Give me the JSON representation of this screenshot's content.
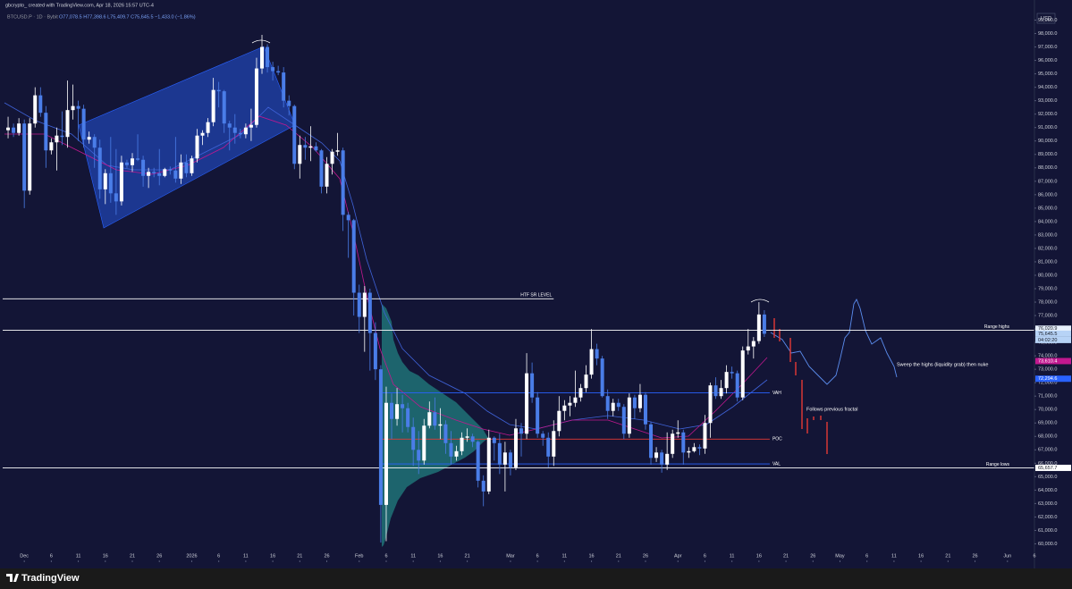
{
  "header": {
    "attribution": "gbcrypto_ created with TradingView.com, Apr 18, 2026 15:57 UTC-4",
    "symbol": "BTCUSD.P · 1D · Bybit",
    "ohlc": "O77,078.5 H77,398.6 L75,409.7 C75,645.5 −1,433.0 (−1.86%)"
  },
  "footer": {
    "logo": "TradingView"
  },
  "chart_data": {
    "type": "candlestick",
    "currency": "USD",
    "up_color": "#ffffff",
    "down_color": "#4a7de8",
    "xlim": [
      "2025-11-27",
      "2026-06-06"
    ],
    "ylim": [
      58700,
      99300
    ],
    "x": [
      "2025-11-28",
      "2025-11-29",
      "2025-11-30",
      "2025-12-01",
      "2025-12-02",
      "2025-12-03",
      "2025-12-04",
      "2025-12-05",
      "2025-12-06",
      "2025-12-07",
      "2025-12-08",
      "2025-12-09",
      "2025-12-10",
      "2025-12-11",
      "2025-12-12",
      "2025-12-13",
      "2025-12-14",
      "2025-12-15",
      "2025-12-16",
      "2025-12-17",
      "2025-12-18",
      "2025-12-19",
      "2025-12-20",
      "2025-12-21",
      "2025-12-22",
      "2025-12-23",
      "2025-12-24",
      "2025-12-25",
      "2025-12-26",
      "2025-12-27",
      "2025-12-28",
      "2025-12-29",
      "2025-12-30",
      "2025-12-31",
      "2026-01-01",
      "2026-01-02",
      "2026-01-03",
      "2026-01-04",
      "2026-01-05",
      "2026-01-06",
      "2026-01-07",
      "2026-01-08",
      "2026-01-09",
      "2026-01-10",
      "2026-01-11",
      "2026-01-12",
      "2026-01-13",
      "2026-01-14",
      "2026-01-15",
      "2026-01-16",
      "2026-01-17",
      "2026-01-18",
      "2026-01-19",
      "2026-01-20",
      "2026-01-21",
      "2026-01-22",
      "2026-01-23",
      "2026-01-24",
      "2026-01-25",
      "2026-01-26",
      "2026-01-27",
      "2026-01-28",
      "2026-01-29",
      "2026-01-30",
      "2026-01-31",
      "2026-02-01",
      "2026-02-02",
      "2026-02-03",
      "2026-02-04",
      "2026-02-05",
      "2026-02-06",
      "2026-02-07",
      "2026-02-08",
      "2026-02-09",
      "2026-02-10",
      "2026-02-11",
      "2026-02-12",
      "2026-02-13",
      "2026-02-14",
      "2026-02-15",
      "2026-02-16",
      "2026-02-17",
      "2026-02-18",
      "2026-02-19",
      "2026-02-20",
      "2026-02-21",
      "2026-02-22",
      "2026-02-23",
      "2026-02-24",
      "2026-02-25",
      "2026-02-26",
      "2026-02-27",
      "2026-02-28",
      "2026-03-01",
      "2026-03-02",
      "2026-03-03",
      "2026-03-04",
      "2026-03-05",
      "2026-03-06",
      "2026-03-07",
      "2026-03-08",
      "2026-03-09",
      "2026-03-10",
      "2026-03-11",
      "2026-03-12",
      "2026-03-13",
      "2026-03-14",
      "2026-03-15",
      "2026-03-16",
      "2026-03-17",
      "2026-03-18",
      "2026-03-19",
      "2026-03-20",
      "2026-03-21",
      "2026-03-22",
      "2026-03-23",
      "2026-03-24",
      "2026-03-25",
      "2026-03-26",
      "2026-03-27",
      "2026-03-28",
      "2026-03-29",
      "2026-03-30",
      "2026-03-31",
      "2026-04-01",
      "2026-04-02",
      "2026-04-03",
      "2026-04-04",
      "2026-04-05",
      "2026-04-06",
      "2026-04-07",
      "2026-04-08",
      "2026-04-09",
      "2026-04-10",
      "2026-04-11",
      "2026-04-12",
      "2026-04-13",
      "2026-04-14",
      "2026-04-15",
      "2026-04-16",
      "2026-04-17"
    ],
    "open": [
      90800,
      91000,
      90600,
      91300,
      86300,
      91300,
      93400,
      92100,
      89300,
      89900,
      90400,
      90300,
      92300,
      92600,
      92400,
      90100,
      90300,
      89500,
      86400,
      87600,
      86100,
      85500,
      88400,
      88200,
      88700,
      88600,
      87400,
      87700,
      87600,
      87400,
      87900,
      87800,
      87200,
      88400,
      87600,
      88700,
      90400,
      90600,
      91400,
      93800,
      93700,
      91300,
      91000,
      90600,
      90500,
      91000,
      91200,
      95400,
      97000,
      95500,
      95200,
      95100,
      93000,
      92600,
      88300,
      89700,
      89500,
      89600,
      89300,
      86600,
      88300,
      89200,
      89300,
      84500,
      84100,
      78700,
      76900,
      78700,
      75700,
      73000,
      62900,
      70500,
      69300,
      70400,
      70100,
      68700,
      67000,
      66200,
      68800,
      69800,
      68800,
      68900,
      67500,
      66500,
      66900,
      67900,
      68000,
      67600,
      64700,
      63900,
      67900,
      67500,
      65900,
      66800,
      65700,
      68600,
      68200,
      72700,
      70900,
      68200,
      67900,
      66500,
      68400,
      69900,
      70300,
      70500,
      70900,
      71600,
      72600,
      74500,
      73800,
      71000,
      69900,
      70500,
      70200,
      68200,
      70900,
      70100,
      71100,
      68900,
      66400,
      66800,
      65900,
      66700,
      68200,
      68300,
      66800,
      66900,
      67200,
      67100,
      69000,
      71800,
      71000,
      71600,
      72800,
      72700,
      70900,
      74400,
      74700,
      75100,
      77078.5
    ],
    "high": [
      91800,
      91300,
      91700,
      91600,
      91700,
      94000,
      94000,
      92600,
      90200,
      91000,
      92200,
      94500,
      94200,
      93000,
      92700,
      90700,
      90500,
      90100,
      87900,
      90300,
      89400,
      88900,
      88600,
      89100,
      90500,
      88900,
      88000,
      88000,
      89400,
      88000,
      88100,
      90300,
      89000,
      89000,
      88900,
      90900,
      90800,
      91700,
      94700,
      94400,
      93800,
      91500,
      92000,
      90900,
      91300,
      92400,
      96200,
      97900,
      97200,
      95900,
      95600,
      95500,
      93400,
      92700,
      90400,
      90300,
      91100,
      89900,
      89400,
      88800,
      89400,
      90600,
      89500,
      84700,
      84200,
      79300,
      79200,
      79000,
      76500,
      73300,
      71700,
      71200,
      71600,
      71100,
      70500,
      69400,
      68400,
      69300,
      70600,
      70900,
      70100,
      69200,
      68400,
      67300,
      68300,
      68600,
      68200,
      67700,
      65100,
      68500,
      68000,
      68200,
      67600,
      67000,
      69300,
      69000,
      74200,
      73500,
      71300,
      68400,
      68300,
      69200,
      71000,
      70700,
      71000,
      72900,
      71900,
      73300,
      76000,
      74900,
      74000,
      71500,
      70800,
      70800,
      70400,
      71200,
      71100,
      71900,
      71300,
      69100,
      67200,
      67000,
      68300,
      68500,
      69200,
      68500,
      67200,
      67500,
      67400,
      69600,
      72000,
      72400,
      72200,
      73300,
      73200,
      72900,
      74700,
      76000,
      75400,
      78000,
      77398.6
    ],
    "low": [
      90200,
      90300,
      90400,
      85000,
      86000,
      91000,
      91800,
      88000,
      89000,
      87800,
      89700,
      89500,
      91600,
      90000,
      89500,
      89800,
      88000,
      85700,
      85300,
      85400,
      84500,
      85200,
      88000,
      87700,
      88500,
      86600,
      86500,
      87300,
      86700,
      87300,
      87500,
      86900,
      86800,
      87300,
      87400,
      88400,
      89700,
      90300,
      91100,
      92500,
      90600,
      89300,
      89800,
      90200,
      90200,
      90000,
      91000,
      95000,
      95100,
      94500,
      94900,
      92500,
      91900,
      87900,
      87200,
      88600,
      88500,
      89200,
      86100,
      86100,
      87500,
      88900,
      83300,
      81300,
      77000,
      75700,
      74300,
      72900,
      72200,
      60100,
      60200,
      67800,
      68800,
      68300,
      68300,
      65800,
      65200,
      65900,
      68600,
      68500,
      67800,
      66700,
      65900,
      66200,
      66600,
      67600,
      67200,
      64200,
      62800,
      63700,
      66200,
      65200,
      63900,
      65100,
      65500,
      66500,
      67800,
      70500,
      67900,
      67300,
      65700,
      65800,
      68000,
      69200,
      69500,
      70200,
      70600,
      71300,
      72300,
      73300,
      70900,
      69300,
      69500,
      69900,
      67800,
      67900,
      69300,
      69800,
      68500,
      65900,
      66100,
      65300,
      65500,
      66400,
      67900,
      65900,
      66400,
      66800,
      66600,
      66700,
      67900,
      70800,
      70800,
      71200,
      72300,
      70600,
      70700,
      74100,
      73800,
      74900,
      75409.7
    ],
    "close": [
      91000,
      90600,
      91300,
      86300,
      91300,
      93400,
      92100,
      89300,
      89900,
      90400,
      90300,
      92300,
      92600,
      92400,
      90100,
      90300,
      89500,
      86400,
      87600,
      86100,
      85500,
      88400,
      88200,
      88700,
      88600,
      87400,
      87700,
      87600,
      87400,
      87900,
      87800,
      87200,
      88400,
      87600,
      88700,
      90400,
      90600,
      91400,
      93800,
      93700,
      91300,
      91000,
      90600,
      90500,
      91000,
      91200,
      95400,
      97000,
      95500,
      95200,
      95100,
      93000,
      92600,
      88300,
      89700,
      89500,
      89600,
      89300,
      86600,
      88300,
      89200,
      89300,
      84500,
      84100,
      78700,
      76900,
      78700,
      75700,
      73000,
      62900,
      70500,
      69300,
      70400,
      70100,
      68700,
      67000,
      66200,
      68800,
      69800,
      68800,
      68900,
      67500,
      66500,
      66900,
      67900,
      68000,
      67600,
      64700,
      63900,
      67900,
      67500,
      65900,
      66800,
      65700,
      68600,
      68200,
      72700,
      70900,
      68200,
      67900,
      66500,
      68400,
      69900,
      70300,
      70500,
      70900,
      71600,
      72600,
      74500,
      73800,
      71000,
      69900,
      70500,
      70200,
      68200,
      70900,
      70100,
      71100,
      68900,
      66400,
      66800,
      65900,
      66700,
      68200,
      68300,
      66800,
      66900,
      67200,
      67100,
      69000,
      71800,
      71000,
      71600,
      72800,
      72700,
      70900,
      74400,
      74700,
      75100,
      77078.5,
      75645.5
    ],
    "xticks": [
      {
        "value": "2025-12-01",
        "label": "Dec"
      },
      {
        "value": "2025-12-06",
        "label": "6"
      },
      {
        "value": "2025-12-11",
        "label": "11"
      },
      {
        "value": "2025-12-16",
        "label": "16"
      },
      {
        "value": "2025-12-21",
        "label": "21"
      },
      {
        "value": "2025-12-26",
        "label": "26"
      },
      {
        "value": "2026-01-01",
        "label": "2026"
      },
      {
        "value": "2026-01-06",
        "label": "6"
      },
      {
        "value": "2026-01-11",
        "label": "11"
      },
      {
        "value": "2026-01-16",
        "label": "16"
      },
      {
        "value": "2026-01-21",
        "label": "21"
      },
      {
        "value": "2026-01-26",
        "label": "26"
      },
      {
        "value": "2026-02-01",
        "label": "Feb"
      },
      {
        "value": "2026-02-06",
        "label": "6"
      },
      {
        "value": "2026-02-11",
        "label": "11"
      },
      {
        "value": "2026-02-16",
        "label": "16"
      },
      {
        "value": "2026-02-21",
        "label": "21"
      },
      {
        "value": "2026-03-01",
        "label": "Mar"
      },
      {
        "value": "2026-03-06",
        "label": "6"
      },
      {
        "value": "2026-03-11",
        "label": "11"
      },
      {
        "value": "2026-03-16",
        "label": "16"
      },
      {
        "value": "2026-03-21",
        "label": "21"
      },
      {
        "value": "2026-03-26",
        "label": "26"
      },
      {
        "value": "2026-04-01",
        "label": "Apr"
      },
      {
        "value": "2026-04-06",
        "label": "6"
      },
      {
        "value": "2026-04-11",
        "label": "11"
      },
      {
        "value": "2026-04-16",
        "label": "16"
      },
      {
        "value": "2026-04-21",
        "label": "21"
      },
      {
        "value": "2026-04-26",
        "label": "26"
      },
      {
        "value": "2026-05-01",
        "label": "May"
      },
      {
        "value": "2026-05-06",
        "label": "6"
      },
      {
        "value": "2026-05-11",
        "label": "11"
      },
      {
        "value": "2026-05-16",
        "label": "16"
      },
      {
        "value": "2026-05-21",
        "label": "21"
      },
      {
        "value": "2026-05-26",
        "label": "26"
      },
      {
        "value": "2026-06-01",
        "label": "Jun"
      },
      {
        "value": "2026-06-06",
        "label": "6"
      }
    ],
    "yticks": [
      {
        "value": 99000,
        "label": "99,000.0"
      },
      {
        "value": 98000,
        "label": "98,000.0"
      },
      {
        "value": 97000,
        "label": "97,000.0"
      },
      {
        "value": 96000,
        "label": "96,000.0"
      },
      {
        "value": 95000,
        "label": "95,000.0"
      },
      {
        "value": 94000,
        "label": "94,000.0"
      },
      {
        "value": 93000,
        "label": "93,000.0"
      },
      {
        "value": 92000,
        "label": "92,000.0"
      },
      {
        "value": 91000,
        "label": "91,000.0"
      },
      {
        "value": 90000,
        "label": "90,000.0"
      },
      {
        "value": 89000,
        "label": "89,000.0"
      },
      {
        "value": 88000,
        "label": "88,000.0"
      },
      {
        "value": 87000,
        "label": "87,000.0"
      },
      {
        "value": 86000,
        "label": "86,000.0"
      },
      {
        "value": 85000,
        "label": "85,000.0"
      },
      {
        "value": 84000,
        "label": "84,000.0"
      },
      {
        "value": 83000,
        "label": "83,000.0"
      },
      {
        "value": 82000,
        "label": "82,000.0"
      },
      {
        "value": 81000,
        "label": "81,000.0"
      },
      {
        "value": 80000,
        "label": "80,000.0"
      },
      {
        "value": 79000,
        "label": "79,000.0"
      },
      {
        "value": 78000,
        "label": "78,000.0"
      },
      {
        "value": 77000,
        "label": "77,000.0"
      },
      {
        "value": 76000,
        "label": "76,000.0"
      },
      {
        "value": 75000,
        "label": "75,000.0"
      },
      {
        "value": 74000,
        "label": "74,000.0"
      },
      {
        "value": 73000,
        "label": "73,000.0"
      },
      {
        "value": 72000,
        "label": "72,000.0"
      },
      {
        "value": 71000,
        "label": "71,000.0"
      },
      {
        "value": 70000,
        "label": "70,000.0"
      },
      {
        "value": 69000,
        "label": "69,000.0"
      },
      {
        "value": 68000,
        "label": "68,000.0"
      },
      {
        "value": 67000,
        "label": "67,000.0"
      },
      {
        "value": 66000,
        "label": "66,000.0"
      },
      {
        "value": 65000,
        "label": "65,000.0"
      },
      {
        "value": 64000,
        "label": "64,000.0"
      },
      {
        "value": 63000,
        "label": "63,000.0"
      },
      {
        "value": 62000,
        "label": "62,000.0"
      },
      {
        "value": 61000,
        "label": "61,000.0"
      },
      {
        "value": 60000,
        "label": "60,000.0"
      }
    ],
    "levels": [
      {
        "label": "HTF SR LEVEL",
        "value": 78250,
        "color": "#ffffff",
        "from": "2025-11-27",
        "to": "2026-03-09"
      },
      {
        "label": "Range highs",
        "value": 75900,
        "color": "#ffffff",
        "from": "2025-11-27",
        "to": "2026-06-06"
      },
      {
        "label": "Range lows",
        "value": 65657.7,
        "color": "#ffffff",
        "from": "2025-11-27",
        "to": "2026-06-06"
      },
      {
        "label": "VAH",
        "value": 71250,
        "color": "#2962ff",
        "from": "2026-02-05",
        "to": "2026-04-18"
      },
      {
        "label": "POC",
        "value": 67800,
        "color": "#e53935",
        "from": "2026-02-05",
        "to": "2026-04-18"
      },
      {
        "label": "VAL",
        "value": 65950,
        "color": "#2962ff",
        "from": "2026-02-05",
        "to": "2026-04-18"
      }
    ],
    "price_tags": [
      {
        "value": 76020.9,
        "label": "76,020.9",
        "color": "#e8f1fd"
      },
      {
        "value": 75645.5,
        "label": "75,645.5",
        "color": "#b7d3f6"
      },
      {
        "value": 73610.4,
        "label": "73,610.4",
        "color": "#c2188f"
      },
      {
        "value": 72294.6,
        "label": "72,294.6",
        "color": "#2962ff"
      },
      {
        "value": 65657.7,
        "label": "65,657.7",
        "color": "#ffffff"
      }
    ],
    "countdown": "04:02:20",
    "annotations": [
      "Sweep the highs (liquidity grab) then nuke",
      "Follows previous fractal"
    ]
  }
}
